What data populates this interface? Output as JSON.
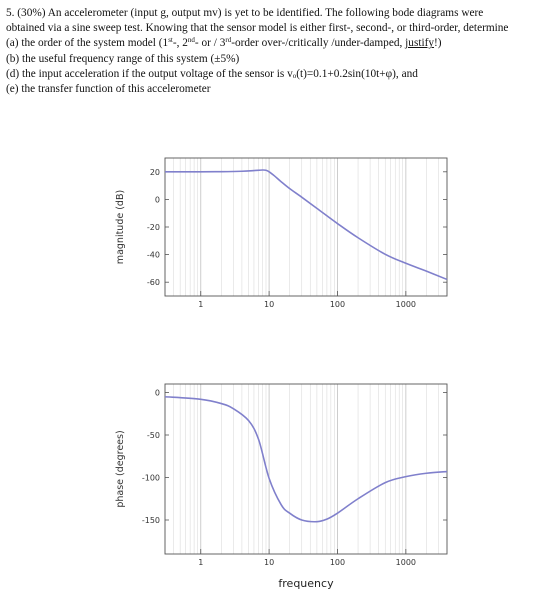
{
  "problem": {
    "line1": "5. (30%) An accelerometer (input g, output mv) is yet to be identified. The following bode diagrams were",
    "line2": "obtained via a sine sweep test.  Knowing that the sensor model is either first-, second-, or third-order, determine",
    "line3_a": "(a) the order of the system model (1",
    "line3_sup1": "st",
    "line3_b": "-,  2",
    "line3_sup2": "nd",
    "line3_c": "- or / 3",
    "line3_sup3": "rd",
    "line3_d": "-order over-/critically /under-damped, ",
    "line3_e": "justify",
    "line3_f": "!)",
    "line4": "(b) the useful frequency range of this system (±5%)",
    "line5_a": "(d) the input acceleration if the output voltage of the sensor is v",
    "line5_sub": "o",
    "line5_b": "(t)=0.1+0.2sin(10t+φ), and",
    "line6": "(e) the transfer function of this accelerometer"
  },
  "chart_data": [
    {
      "type": "line",
      "title": "",
      "xlabel": "",
      "ylabel": "magnitude (dB)",
      "xscale": "log",
      "xlim": [
        0.3,
        4000
      ],
      "ylim": [
        -70,
        30
      ],
      "x_ticks": [
        1,
        10,
        100,
        1000
      ],
      "x_tick_labels": [
        "1",
        "10",
        "100",
        "1000"
      ],
      "y_ticks": [
        20,
        0,
        -20,
        -40,
        -60
      ],
      "y_tick_labels": [
        "20",
        "0",
        "-20",
        "-40",
        "-60"
      ],
      "grid": "vertical",
      "series_color": "#8080cc",
      "x": [
        0.3,
        1,
        2,
        4,
        6,
        8,
        9,
        10,
        12,
        15,
        20,
        30,
        50,
        100,
        200,
        500,
        1000,
        2000,
        4000
      ],
      "y": [
        20,
        20,
        20.1,
        20.4,
        20.9,
        21.3,
        21.1,
        20,
        17,
        12.8,
        7.8,
        1.6,
        -6.5,
        -17.5,
        -27.8,
        -39.8,
        -46.3,
        -52,
        -58
      ]
    },
    {
      "type": "line",
      "title": "",
      "xlabel": "frequency",
      "ylabel": "phase (degrees)",
      "xscale": "log",
      "xlim": [
        0.3,
        4000
      ],
      "ylim": [
        -190,
        10
      ],
      "x_ticks": [
        1,
        10,
        100,
        1000
      ],
      "x_tick_labels": [
        "1",
        "10",
        "100",
        "1000"
      ],
      "y_ticks": [
        0,
        -50,
        -100,
        -150
      ],
      "y_tick_labels": [
        "0",
        "-50",
        "-100",
        "-150"
      ],
      "grid": "vertical",
      "series_color": "#8080cc",
      "x": [
        0.3,
        1,
        2,
        3,
        5,
        7,
        10,
        15,
        20,
        30,
        50,
        70,
        100,
        200,
        500,
        1000,
        2000,
        4000
      ],
      "y": [
        -5,
        -8,
        -13,
        -19,
        -33,
        -55,
        -101,
        -132,
        -142,
        -150,
        -152,
        -149,
        -142,
        -125,
        -106,
        -99,
        -95,
        -93
      ]
    }
  ]
}
